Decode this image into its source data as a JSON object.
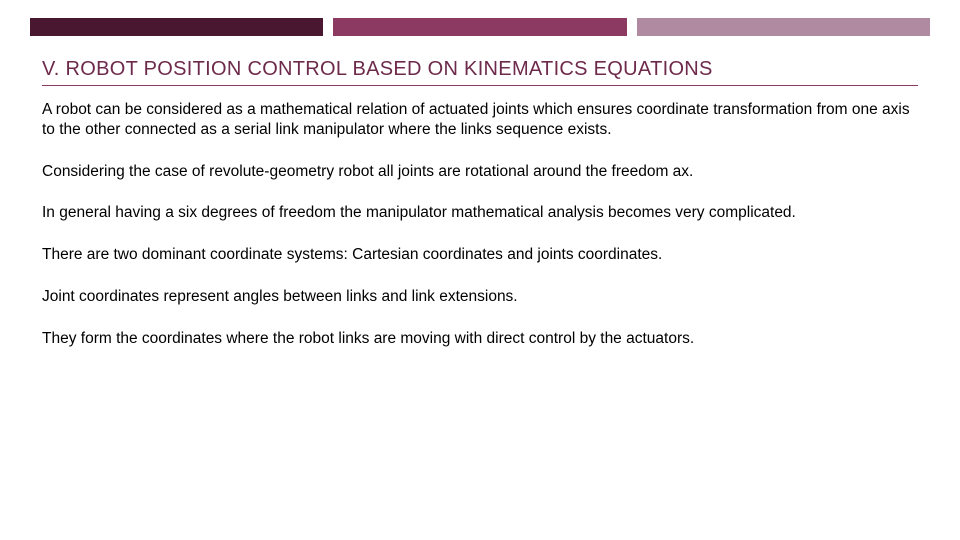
{
  "colors": {
    "bar1": "#4a1730",
    "bar2": "#8d3a62",
    "bar3": "#b08aa0",
    "titleText": "#6d2a4b",
    "titleUnderline": "#8d3a62",
    "bodyText": "#000000",
    "background": "#ffffff"
  },
  "typography": {
    "titleFontSize": 20,
    "bodyFontSize": 15.5,
    "fontFamily": "Arial"
  },
  "title": "V. ROBOT POSITION CONTROL BASED ON KINEMATICS EQUATIONS",
  "paragraphs": [
    "A robot can be considered as a mathematical relation of actuated joints which ensures coordinate transformation from one axis to the other connected as a serial link manipulator where the links sequence exists.",
    "Considering the case of revolute-geometry robot all joints are rotational around the freedom ax.",
    "In general having a six degrees of freedom the manipulator mathematical analysis becomes very complicated.",
    "There are two dominant coordinate systems: Cartesian coordinates and joints coordinates.",
    "Joint coordinates represent angles between links and link extensions.",
    "They form the coordinates where the robot links are moving with direct control by the actuators."
  ]
}
